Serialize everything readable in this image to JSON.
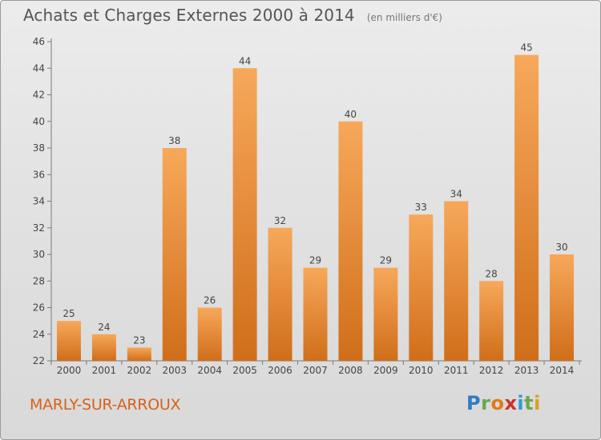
{
  "header": {
    "title": "Achats et Charges Externes 2000 à 2014",
    "subtitle": "(en milliers d'€)"
  },
  "footer": {
    "commune": "MARLY-SUR-ARROUX",
    "logo_letters": [
      "P",
      "r",
      "o",
      "x",
      "i",
      "t",
      "i"
    ],
    "logo_colors": [
      "#2e7bc4",
      "#6aa84f",
      "#e07b1a",
      "#c9322f",
      "#2e9bd6",
      "#6aa84f",
      "#d9a21a"
    ]
  },
  "chart_data": {
    "type": "bar",
    "title": "Achats et Charges Externes 2000 à 2014",
    "subtitle": "(en milliers d'€)",
    "categories": [
      "2000",
      "2001",
      "2002",
      "2003",
      "2004",
      "2005",
      "2006",
      "2007",
      "2008",
      "2009",
      "2010",
      "2011",
      "2012",
      "2013",
      "2014"
    ],
    "values": [
      25,
      24,
      23,
      38,
      26,
      44,
      32,
      29,
      40,
      29,
      33,
      34,
      28,
      45,
      30
    ],
    "ylim": [
      22,
      46
    ],
    "yticks": [
      22,
      24,
      26,
      28,
      30,
      32,
      34,
      36,
      38,
      40,
      42,
      44,
      46
    ],
    "grid": false,
    "bar_color_light": "#f7a85a",
    "bar_color_dark": "#d06e1a",
    "xlabel": "",
    "ylabel": ""
  }
}
